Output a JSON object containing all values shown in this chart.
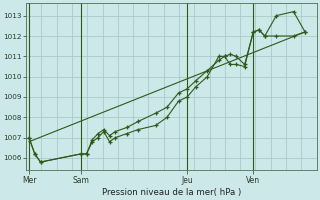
{
  "bg_color": "#cce8e8",
  "grid_color": "#aacaca",
  "line_color": "#2d5a1b",
  "title": "Pression niveau de la mer( hPa )",
  "ylim": [
    1005.4,
    1013.6
  ],
  "yticks": [
    1006,
    1007,
    1008,
    1009,
    1010,
    1011,
    1012,
    1013
  ],
  "day_labels": [
    "Mer",
    "Sam",
    "Jeu",
    "Ven"
  ],
  "day_positions": [
    0,
    18,
    55,
    78
  ],
  "xlim": [
    -1,
    100
  ],
  "vline_color": "#2d5a1b",
  "line1_x": [
    0,
    2,
    4,
    18,
    20,
    22,
    24,
    26,
    28,
    30,
    34,
    38,
    44,
    48,
    52,
    55,
    58,
    62,
    66,
    68,
    70,
    72,
    75,
    78,
    80,
    82,
    86,
    92,
    96
  ],
  "line1_y": [
    1007.0,
    1006.2,
    1005.8,
    1006.2,
    1006.2,
    1006.8,
    1007.0,
    1007.3,
    1006.8,
    1007.0,
    1007.2,
    1007.4,
    1007.6,
    1008.0,
    1008.8,
    1009.0,
    1009.5,
    1010.0,
    1011.0,
    1011.0,
    1010.6,
    1010.6,
    1010.5,
    1012.2,
    1012.3,
    1012.0,
    1013.0,
    1013.2,
    1012.2
  ],
  "line2_x": [
    0,
    2,
    4,
    18,
    20,
    22,
    24,
    26,
    28,
    30,
    34,
    38,
    44,
    48,
    52,
    55,
    58,
    62,
    66,
    68,
    70,
    72,
    75,
    78,
    80,
    82,
    86,
    92,
    96
  ],
  "line2_y": [
    1007.0,
    1006.2,
    1005.8,
    1006.2,
    1006.2,
    1006.9,
    1007.2,
    1007.4,
    1007.1,
    1007.3,
    1007.5,
    1007.8,
    1008.2,
    1008.5,
    1009.2,
    1009.4,
    1009.8,
    1010.3,
    1010.8,
    1011.0,
    1011.1,
    1011.0,
    1010.6,
    1012.2,
    1012.3,
    1012.0,
    1012.0,
    1012.0,
    1012.2
  ],
  "trend_x": [
    0,
    96
  ],
  "trend_y": [
    1006.8,
    1012.2
  ],
  "marker_size": 3.5,
  "linewidth": 0.8
}
